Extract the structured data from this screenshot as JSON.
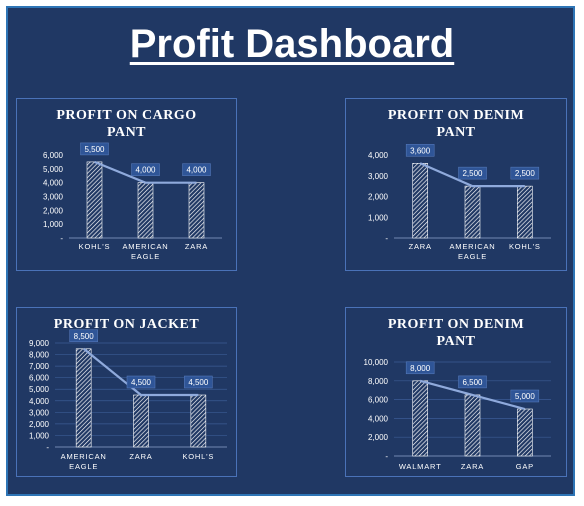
{
  "dashboard": {
    "title": "Profit Dashboard"
  },
  "chart_data": [
    {
      "type": "bar",
      "title": [
        "PROFIT ON CARGO",
        "PANT"
      ],
      "categories": [
        [
          "KOHL'S"
        ],
        [
          "AMERICAN",
          "EAGLE"
        ],
        [
          "ZARA"
        ]
      ],
      "values": [
        5500,
        4000,
        4000
      ],
      "data_labels": [
        "5,500",
        "4,000",
        "4,000"
      ],
      "ylim": [
        0,
        6000
      ],
      "yticks": [
        0,
        1000,
        2000,
        3000,
        4000,
        5000,
        6000
      ],
      "ytick_labels": [
        "-",
        "1,000",
        "2,000",
        "3,000",
        "4,000",
        "5,000",
        "6,000"
      ],
      "trendline": true,
      "grid": false
    },
    {
      "type": "bar",
      "title": [
        "PROFIT ON DENIM",
        "PANT"
      ],
      "categories": [
        [
          "ZARA"
        ],
        [
          "AMERICAN",
          "EAGLE"
        ],
        [
          "KOHL'S"
        ]
      ],
      "values": [
        3600,
        2500,
        2500
      ],
      "data_labels": [
        "3,600",
        "2,500",
        "2,500"
      ],
      "ylim": [
        0,
        4000
      ],
      "yticks": [
        0,
        1000,
        2000,
        3000,
        4000
      ],
      "ytick_labels": [
        "-",
        "1,000",
        "2,000",
        "3,000",
        "4,000"
      ],
      "trendline": true,
      "grid": false
    },
    {
      "type": "bar",
      "title": [
        "PROFIT ON JACKET"
      ],
      "categories": [
        [
          "AMERICAN",
          "EAGLE"
        ],
        [
          "ZARA"
        ],
        [
          "KOHL'S"
        ]
      ],
      "values": [
        8500,
        4500,
        4500
      ],
      "data_labels": [
        "8,500",
        "4,500",
        "4,500"
      ],
      "ylim": [
        0,
        9000
      ],
      "yticks": [
        0,
        1000,
        2000,
        3000,
        4000,
        5000,
        6000,
        7000,
        8000,
        9000
      ],
      "ytick_labels": [
        "-",
        "1,000",
        "2,000",
        "3,000",
        "4,000",
        "5,000",
        "6,000",
        "7,000",
        "8,000",
        "9,000"
      ],
      "trendline": true,
      "grid": true
    },
    {
      "type": "bar",
      "title": [
        "PROFIT ON DENIM",
        "PANT"
      ],
      "categories": [
        [
          "WALMART"
        ],
        [
          "ZARA"
        ],
        [
          "GAP"
        ]
      ],
      "values": [
        8000,
        6500,
        5000
      ],
      "data_labels": [
        "8,000",
        "6,500",
        "5,000"
      ],
      "ylim": [
        0,
        10000
      ],
      "yticks": [
        0,
        2000,
        4000,
        6000,
        8000,
        10000
      ],
      "ytick_labels": [
        "-",
        "2,000",
        "4,000",
        "6,000",
        "8,000",
        "10,000"
      ],
      "trendline": true,
      "grid": true
    }
  ],
  "colors": {
    "background": "#203864",
    "frame_border": "#2e75b6",
    "panel_border": "#4a72b8",
    "bar_hatch": "#ffffff",
    "label_box": "#2f5597",
    "trendline": "#8faadc"
  }
}
